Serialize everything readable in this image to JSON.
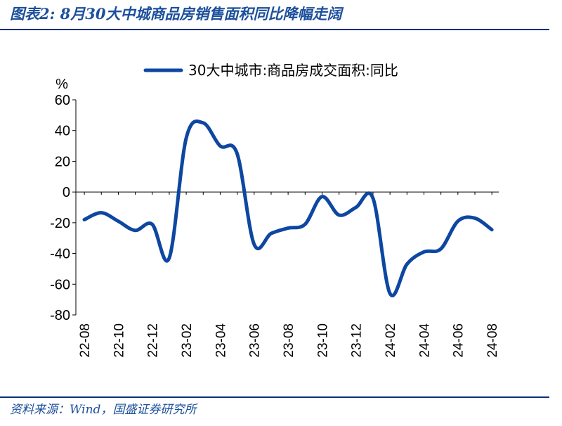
{
  "header": {
    "title": "图表2: 8月30大中城商品房销售面积同比降幅走阔"
  },
  "footer": {
    "source": "资料来源：Wind，国盛证券研究所"
  },
  "colors": {
    "series": "#0d47a1",
    "text_accent": "#1c4f9c",
    "rule": "#0d2f7a"
  },
  "chart_data": {
    "type": "line",
    "title": "",
    "xlabel": "",
    "ylabel": "%",
    "ylim": [
      -80,
      60
    ],
    "yticks": [
      60,
      40,
      20,
      0,
      -20,
      -40,
      -60,
      -80
    ],
    "grid": false,
    "legend_position": "top",
    "x": [
      "22-08",
      "22-09",
      "22-10",
      "22-11",
      "22-12",
      "23-01",
      "23-02",
      "23-03",
      "23-04",
      "23-05",
      "23-06",
      "23-07",
      "23-08",
      "23-09",
      "23-10",
      "23-11",
      "23-12",
      "24-01",
      "24-02",
      "24-03",
      "24-04",
      "24-05",
      "24-06",
      "24-07",
      "24-08"
    ],
    "xtick_labels": [
      "22-08",
      "22-10",
      "22-12",
      "23-02",
      "23-04",
      "23-06",
      "23-08",
      "23-10",
      "23-12",
      "24-02",
      "24-04",
      "24-06",
      "24-08"
    ],
    "series": [
      {
        "name": "30大中城市:商品房成交面积:同比",
        "values": [
          -18,
          -13.5,
          -19,
          -25,
          -21,
          -43,
          35,
          45,
          30,
          25,
          -34,
          -27,
          -23.5,
          -21,
          -3,
          -15,
          -10,
          -4,
          -66,
          -47,
          -39,
          -37,
          -19,
          -17,
          -24.5
        ]
      }
    ]
  }
}
